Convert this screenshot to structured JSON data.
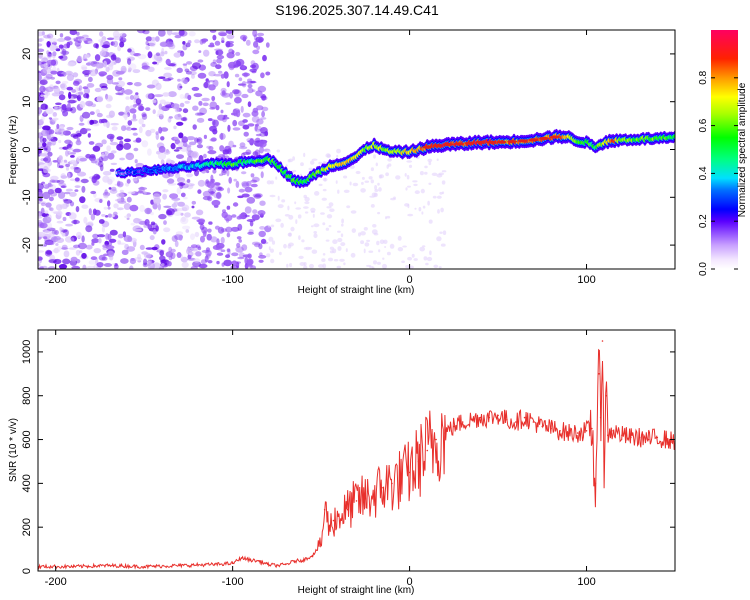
{
  "title": "S196.2025.307.14.49.C41",
  "colors": {
    "snr_line": "#e8302c",
    "ridge_red": "#e2231a"
  },
  "chart_data": [
    {
      "type": "heatmap",
      "name": "spectrogram",
      "xlabel": "Height of straight line (km)",
      "ylabel": "Frequency (Hz)",
      "xlim": [
        -210,
        150
      ],
      "ylim": [
        -25,
        25
      ],
      "xticks": [
        -200,
        -100,
        0,
        100
      ],
      "yticks": [
        -20,
        -10,
        0,
        10,
        20
      ],
      "ridge": {
        "x": [
          -165,
          -150,
          -135,
          -120,
          -110,
          -100,
          -90,
          -80,
          -75,
          -70,
          -65,
          -60,
          -55,
          -50,
          -45,
          -40,
          -35,
          -30,
          -25,
          -20,
          -15,
          -10,
          -5,
          0,
          10,
          20,
          30,
          40,
          50,
          60,
          70,
          80,
          85,
          90,
          95,
          100,
          105,
          110,
          115,
          120,
          130,
          140,
          150
        ],
        "freq": [
          -5,
          -4.5,
          -4,
          -3.5,
          -3,
          -3,
          -2.5,
          -2,
          -3,
          -5,
          -6.5,
          -7,
          -5.5,
          -4.5,
          -3.5,
          -3,
          -2.5,
          -1.5,
          0,
          1,
          0,
          -0.5,
          -0.5,
          -0.5,
          0.5,
          1,
          1.2,
          1.5,
          1.5,
          1.7,
          2,
          2.5,
          2.8,
          2.5,
          1.8,
          1.5,
          0.5,
          1.5,
          1.8,
          2,
          2.2,
          2.3,
          2.5
        ],
        "amplitude": [
          0.15,
          0.25,
          0.3,
          0.4,
          0.5,
          0.55,
          0.5,
          0.6,
          0.5,
          0.55,
          0.6,
          0.5,
          0.55,
          0.6,
          0.7,
          0.7,
          0.75,
          0.7,
          0.65,
          0.7,
          0.65,
          0.6,
          0.7,
          0.75,
          0.85,
          0.9,
          0.85,
          0.9,
          0.85,
          0.8,
          0.85,
          0.8,
          0.85,
          0.7,
          0.6,
          0.55,
          0.5,
          0.7,
          0.9,
          0.6,
          0.6,
          0.6,
          0.55
        ]
      },
      "colorbar": {
        "label": "Normalized spectral amplitude",
        "range": [
          0,
          1
        ],
        "ticks": [
          "0.0",
          "0.2",
          "0.4",
          "0.6",
          "0.8"
        ],
        "tick_values": [
          0,
          0.2,
          0.4,
          0.6,
          0.8
        ]
      }
    },
    {
      "type": "line",
      "name": "snr",
      "xlabel": "Height of straight line (km)",
      "ylabel": "SNR (10 * v/v)",
      "xlim": [
        -210,
        150
      ],
      "ylim": [
        0,
        1100
      ],
      "xticks": [
        -200,
        -100,
        0,
        100
      ],
      "yticks": [
        0,
        200,
        400,
        600,
        800,
        1000
      ],
      "series": [
        {
          "name": "SNR",
          "x": [
            -210,
            -190,
            -170,
            -150,
            -130,
            -110,
            -100,
            -95,
            -90,
            -85,
            -80,
            -75,
            -70,
            -65,
            -60,
            -55,
            -50,
            -48,
            -45,
            -43,
            -40,
            -35,
            -30,
            -25,
            -20,
            -15,
            -10,
            -5,
            0,
            5,
            10,
            15,
            20,
            25,
            30,
            35,
            40,
            45,
            50,
            55,
            60,
            65,
            70,
            75,
            80,
            85,
            90,
            95,
            100,
            103,
            105,
            107,
            108,
            109,
            110,
            111,
            112,
            115,
            120,
            125,
            130,
            135,
            140,
            145,
            150
          ],
          "y": [
            20,
            20,
            25,
            20,
            25,
            30,
            35,
            60,
            50,
            45,
            30,
            25,
            30,
            45,
            50,
            70,
            120,
            280,
            200,
            230,
            250,
            280,
            320,
            330,
            350,
            380,
            400,
            420,
            450,
            500,
            550,
            600,
            630,
            660,
            680,
            690,
            700,
            700,
            710,
            690,
            680,
            700,
            680,
            660,
            650,
            640,
            630,
            630,
            640,
            650,
            400,
            900,
            700,
            1050,
            500,
            800,
            620,
            640,
            620,
            610,
            610,
            600,
            610,
            600,
            590
          ]
        }
      ]
    }
  ]
}
